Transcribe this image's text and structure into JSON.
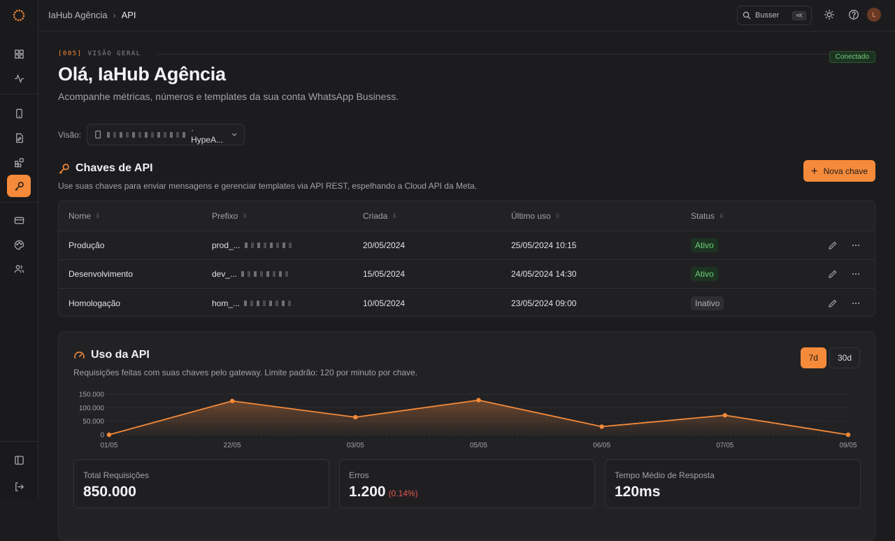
{
  "topbar": {
    "breadcrumb": [
      "IaHub Agência",
      "API"
    ],
    "search_label": "Busser",
    "search_shortcut": "⌘K",
    "avatar_initial": "L"
  },
  "header": {
    "eyebrow_code": "[005]",
    "eyebrow_label": "VISÃO GERAL",
    "status_badge": "Conectado",
    "title": "Olá, IaHub Agência",
    "subtitle": "Acompanhe métricas, números e templates da sua conta WhatsApp Business.",
    "view_label": "Visão:",
    "view_value_suffix": "· HypeA..."
  },
  "api_keys": {
    "title": "Chaves de API",
    "description": "Use suas chaves para enviar mensagens e gerenciar templates via API REST, espelhando a Cloud API da Meta.",
    "new_button": "Nova chave",
    "columns": [
      "Nome",
      "Prefixo",
      "Criada",
      "Último uso",
      "Status"
    ],
    "rows": [
      {
        "name": "Produção",
        "prefix": "prod_...",
        "created": "20/05/2024",
        "last_used": "25/05/2024 10:15",
        "status": "Ativo",
        "active": true
      },
      {
        "name": "Desenvolvimento",
        "prefix": "dev_...",
        "created": "15/05/2024",
        "last_used": "24/05/2024 14:30",
        "status": "Ativo",
        "active": true
      },
      {
        "name": "Homologação",
        "prefix": "hom_...",
        "created": "10/05/2024",
        "last_used": "23/05/2024 09:00",
        "status": "Inativo",
        "active": false
      }
    ]
  },
  "usage": {
    "title": "Uso da API",
    "description": "Requisições feitas com suas chaves pelo gateway. Limite padrão: 120 por minuto por chave.",
    "range_options": [
      "7d",
      "30d"
    ],
    "range_selected": "7d",
    "stats": [
      {
        "label": "Total Requisições",
        "value": "850.000",
        "extra": ""
      },
      {
        "label": "Erros",
        "value": "1.200",
        "extra": "(0.14%)"
      },
      {
        "label": "Tempo Médio de Resposta",
        "value": "120ms",
        "extra": ""
      }
    ]
  },
  "chart_data": {
    "type": "area",
    "x": [
      "01/05",
      "22/05",
      "03/05",
      "05/05",
      "06/05",
      "07/05",
      "09/05"
    ],
    "values": [
      0,
      125000,
      65000,
      128000,
      30000,
      72000,
      0
    ],
    "yticks": [
      "150.000",
      "100.000",
      "50.000",
      "0"
    ],
    "ylim": [
      0,
      150000
    ],
    "grid": true,
    "color": "#f58a3a"
  },
  "colors": {
    "accent": "#f58a3a",
    "success": "#6fcf7a",
    "error": "#e5584f"
  }
}
